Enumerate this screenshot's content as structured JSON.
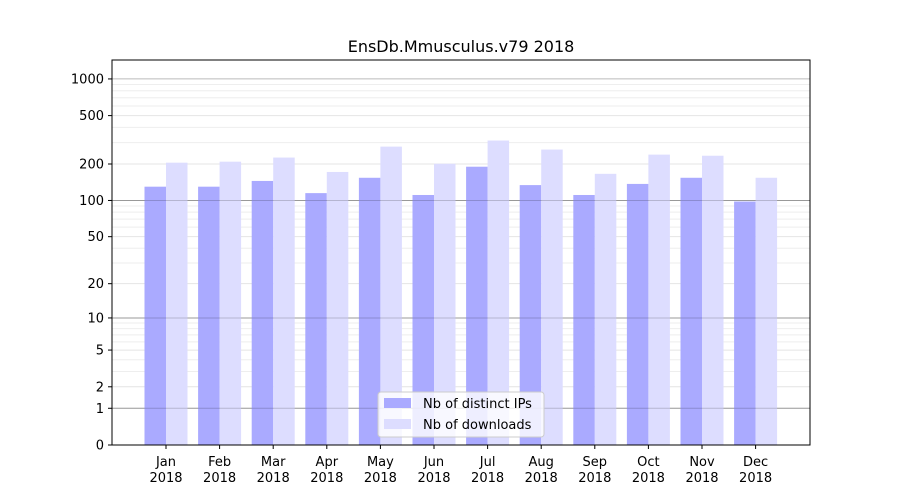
{
  "chart_data": {
    "type": "bar",
    "title": "EnsDb.Mmusculus.v79 2018",
    "xlabel": "",
    "ylabel": "",
    "yscale": "log(y+1)",
    "ylim": [
      0,
      1430
    ],
    "yticks": [
      0,
      1,
      2,
      5,
      10,
      20,
      50,
      100,
      200,
      500,
      1000
    ],
    "grid": true,
    "legend_position": "bottom-center",
    "categories": [
      "Jan\n2018",
      "Feb\n2018",
      "Mar\n2018",
      "Apr\n2018",
      "May\n2018",
      "Jun\n2018",
      "Jul\n2018",
      "Aug\n2018",
      "Sep\n2018",
      "Oct\n2018",
      "Nov\n2018",
      "Dec\n2018"
    ],
    "series": [
      {
        "name": "Nb of distinct IPs",
        "color": "#aaaaff",
        "values": [
          130,
          130,
          145,
          115,
          154,
          111,
          190,
          134,
          111,
          137,
          154,
          98
        ]
      },
      {
        "name": "Nb of downloads",
        "color": "#ddddff",
        "values": [
          205,
          209,
          226,
          172,
          278,
          201,
          312,
          263,
          166,
          239,
          234,
          154
        ]
      }
    ]
  }
}
